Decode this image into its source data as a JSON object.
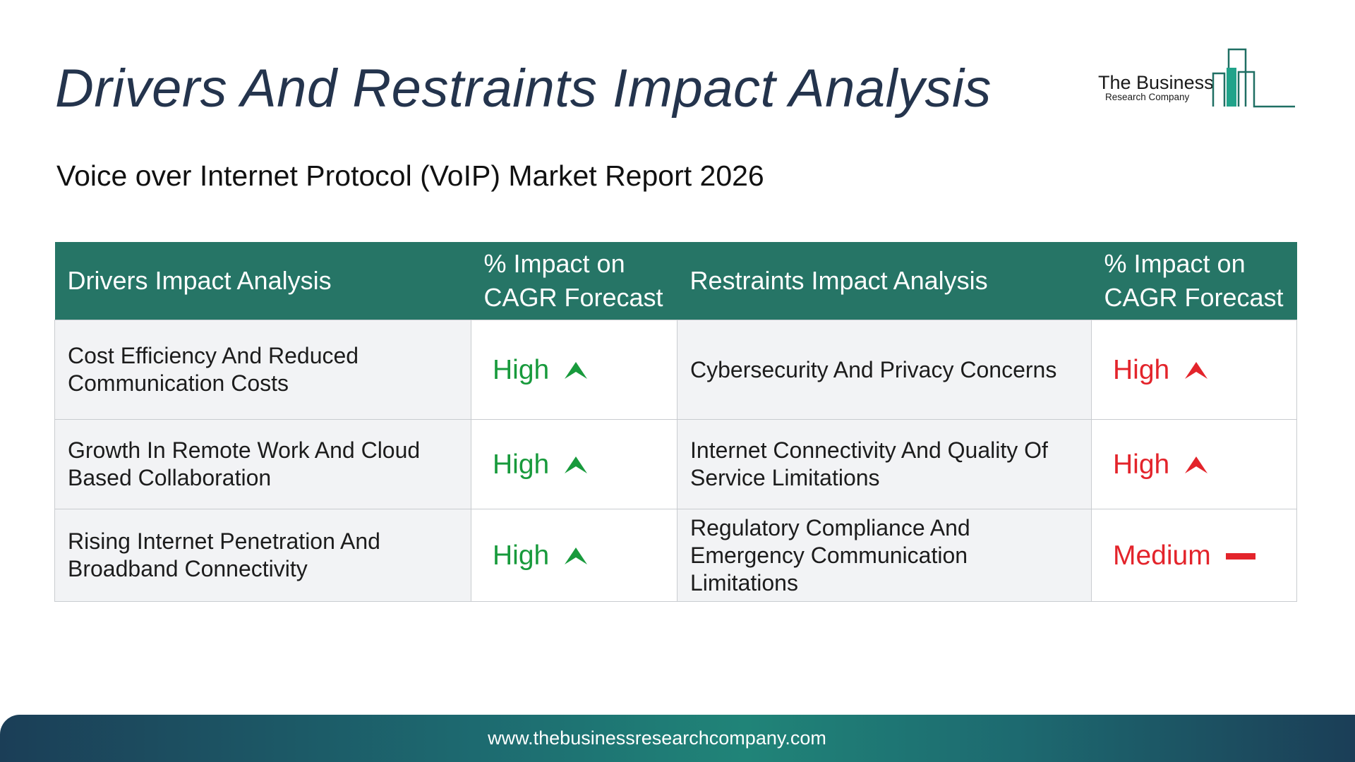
{
  "title": "Drivers And Restraints Impact Analysis",
  "subtitle": "Voice over Internet Protocol (VoIP) Market Report 2026",
  "logo": {
    "name": "The Business",
    "sub": "Research Company"
  },
  "table": {
    "headers": {
      "drivers": "Drivers Impact Analysis",
      "drivers_impact": "% Impact on CAGR Forecast",
      "restraints": "Restraints Impact Analysis",
      "restraints_impact": "% Impact on CAGR Forecast"
    },
    "rows": [
      {
        "driver": "Cost Efficiency And Reduced Communication Costs",
        "driver_impact": "High",
        "driver_icon": "green-up-arrow-icon",
        "restraint": "Cybersecurity And Privacy Concerns",
        "restraint_impact": "High",
        "restraint_icon": "red-up-arrow-icon"
      },
      {
        "driver": "Growth In Remote Work And Cloud Based Collaboration",
        "driver_impact": "High",
        "driver_icon": "green-up-arrow-icon",
        "restraint": "Internet Connectivity And Quality Of Service Limitations",
        "restraint_impact": "High",
        "restraint_icon": "red-up-arrow-icon"
      },
      {
        "driver": "Rising Internet Penetration And Broadband Connectivity",
        "driver_impact": "High",
        "driver_icon": "green-up-arrow-icon",
        "restraint": "Regulatory Compliance And Emergency Communication Limitations",
        "restraint_impact": "Medium",
        "restraint_icon": "red-dash-icon"
      }
    ]
  },
  "colors": {
    "header_bg": "#267566",
    "title": "#24344d",
    "positive": "#189a3c",
    "negative": "#e3242b"
  },
  "footer": {
    "url": "www.thebusinessresearchcompany.com"
  }
}
